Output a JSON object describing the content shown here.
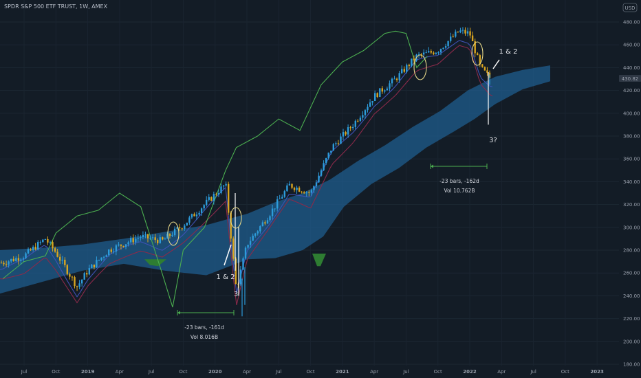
{
  "header": {
    "title": "SPDR S&P 500 ETF TRUST, 1W, AMEX",
    "currency": "USD"
  },
  "price_axis": {
    "ticks": [
      "480.00",
      "460.00",
      "440.00",
      "420.00",
      "400.00",
      "380.00",
      "360.00",
      "340.00",
      "320.00",
      "300.00",
      "280.00",
      "260.00",
      "240.00",
      "220.00",
      "200.00",
      "180.00"
    ],
    "last_price_label": "430.82"
  },
  "time_axis": {
    "ticks": [
      "Jul",
      "Oct",
      "2019",
      "Apr",
      "Jul",
      "Oct",
      "2020",
      "Apr",
      "Jul",
      "Oct",
      "2021",
      "Apr",
      "Jul",
      "Oct",
      "2022",
      "Apr",
      "Jul",
      "Oct",
      "2023"
    ]
  },
  "annotations": {
    "left_wave": "1 & 2",
    "left_three": "3",
    "right_wave": "1 & 2",
    "right_three": "3?",
    "left_range_bars": "-23 bars, -161d",
    "left_range_vol": "Vol 8.016B",
    "right_range_bars": "-23 bars, -162d",
    "right_range_vol": "Vol 10.762B"
  },
  "colors": {
    "background": "#131c26",
    "candle_up": "#2d9cdb",
    "candle_down": "#d9a520",
    "cloud": "#1f5c8d",
    "cloud_bearish": "#2e7d32",
    "lagging_span": "#4caf50",
    "conversion_line": "#3f51b5",
    "base_line": "#8b2a4a",
    "marker": "#e8d98a",
    "measure": "#4caf50",
    "annotation_text": "#ffffff"
  },
  "chart_data": {
    "type": "line",
    "ylim": [
      180,
      480
    ],
    "xlim": [
      "2018-05",
      "2023-02"
    ],
    "series": [
      {
        "kind": "close",
        "points": [
          [
            "2018-05",
            269
          ],
          [
            "2018-07",
            275
          ],
          [
            "2018-09",
            290
          ],
          [
            "2018-10",
            278
          ],
          [
            "2018-12",
            248
          ],
          [
            "2019-01",
            262
          ],
          [
            "2019-03",
            280
          ],
          [
            "2019-05",
            288
          ],
          [
            "2019-06",
            292
          ],
          [
            "2019-08",
            288
          ],
          [
            "2019-10",
            302
          ],
          [
            "2019-12",
            320
          ],
          [
            "2020-02",
            338
          ],
          [
            "2020-03",
            245
          ],
          [
            "2020-04",
            285
          ],
          [
            "2020-06",
            310
          ],
          [
            "2020-08",
            337
          ],
          [
            "2020-10",
            330
          ],
          [
            "2020-12",
            370
          ],
          [
            "2021-02",
            390
          ],
          [
            "2021-04",
            415
          ],
          [
            "2021-06",
            430
          ],
          [
            "2021-08",
            450
          ],
          [
            "2021-10",
            455
          ],
          [
            "2021-12",
            472
          ],
          [
            "2022-01",
            470
          ],
          [
            "2022-02",
            440
          ],
          [
            "2022-03",
            430
          ]
        ]
      },
      {
        "kind": "lagging_span",
        "points": [
          [
            "2018-05",
            255
          ],
          [
            "2018-07",
            270
          ],
          [
            "2018-09",
            275
          ],
          [
            "2018-10",
            295
          ],
          [
            "2018-12",
            310
          ],
          [
            "2019-02",
            315
          ],
          [
            "2019-04",
            330
          ],
          [
            "2019-06",
            318
          ],
          [
            "2019-08",
            260
          ],
          [
            "2019-09",
            230
          ],
          [
            "2019-10",
            280
          ],
          [
            "2019-12",
            300
          ],
          [
            "2020-02",
            350
          ],
          [
            "2020-03",
            370
          ],
          [
            "2020-05",
            380
          ],
          [
            "2020-07",
            395
          ],
          [
            "2020-09",
            385
          ],
          [
            "2020-11",
            425
          ],
          [
            "2021-01",
            445
          ],
          [
            "2021-03",
            455
          ],
          [
            "2021-05",
            470
          ],
          [
            "2021-06",
            472
          ],
          [
            "2021-07",
            470
          ],
          [
            "2021-08",
            440
          ],
          [
            "2021-09",
            450
          ]
        ]
      }
    ]
  }
}
